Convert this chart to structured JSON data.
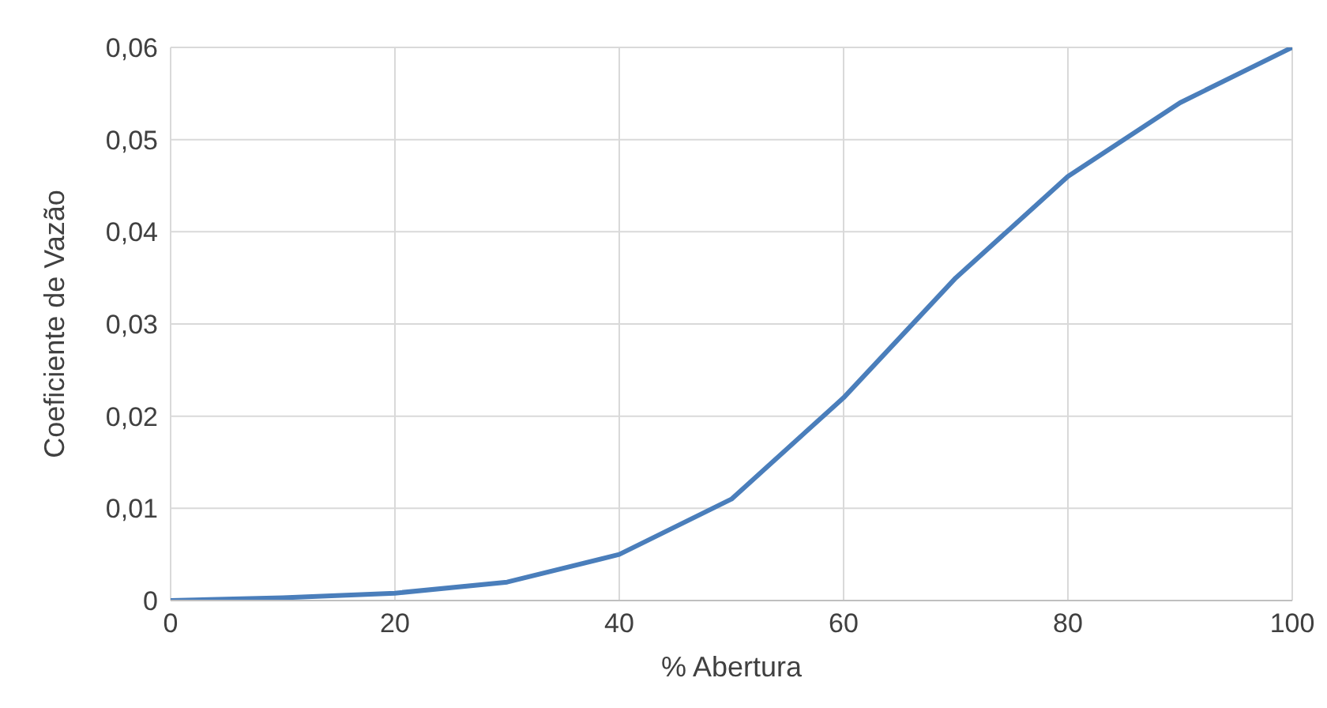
{
  "chart_data": {
    "type": "line",
    "xlabel": "% Abertura",
    "ylabel": "Coeficiente de Vazão",
    "x": [
      0,
      10,
      20,
      30,
      40,
      50,
      60,
      70,
      80,
      90,
      100
    ],
    "series": [
      {
        "color": "#4a7ebb",
        "values": [
          0,
          0.0003,
          0.0008,
          0.002,
          0.005,
          0.011,
          0.022,
          0.035,
          0.046,
          0.054,
          0.06
        ]
      }
    ],
    "xlim": [
      0,
      100
    ],
    "xticks": [
      0,
      20,
      40,
      60,
      80,
      100
    ],
    "ylim": [
      0,
      0.06
    ],
    "yticks": [
      {
        "value": 0,
        "label": "0"
      },
      {
        "value": 0.01,
        "label": "0,01"
      },
      {
        "value": 0.02,
        "label": "0,02"
      },
      {
        "value": 0.03,
        "label": "0,03"
      },
      {
        "value": 0.04,
        "label": "0,04"
      },
      {
        "value": 0.05,
        "label": "0,05"
      },
      {
        "value": 0.06,
        "label": "0,06"
      }
    ],
    "grid": true,
    "marker": "none",
    "line_style": "solid"
  }
}
